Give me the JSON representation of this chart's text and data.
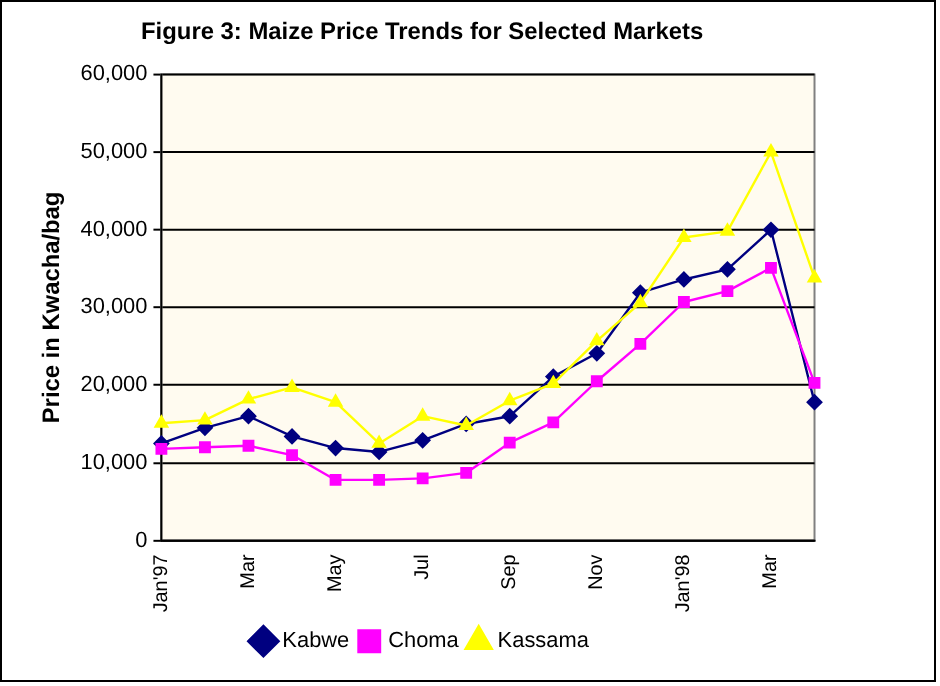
{
  "chart_data": {
    "type": "line",
    "title": "Figure 3: Maize Price Trends for Selected Markets",
    "ylabel": "Price in Kwacha/bag",
    "categories": [
      "Jan'97",
      null,
      "Mar",
      null,
      "May",
      null,
      "Jul",
      null,
      "Sep",
      null,
      "Nov",
      null,
      "Jan'98",
      null,
      "Mar",
      null
    ],
    "series": [
      {
        "name": "Kabwe",
        "color": "#000080",
        "marker": "diamond",
        "values": [
          12500,
          14500,
          16000,
          13400,
          11900,
          11400,
          12900,
          15000,
          16000,
          21100,
          24100,
          31900,
          33600,
          34900,
          40000,
          17800
        ]
      },
      {
        "name": "Choma",
        "color": "#ff00ff",
        "marker": "square",
        "values": [
          11800,
          12000,
          12200,
          11000,
          7800,
          7800,
          8000,
          8700,
          12600,
          15200,
          20500,
          25300,
          30700,
          32100,
          35100,
          20300
        ]
      },
      {
        "name": "Kassama",
        "color": "#ffff00",
        "marker": "triangle",
        "values": [
          15100,
          15500,
          18200,
          19700,
          17800,
          12500,
          16000,
          14800,
          18000,
          20200,
          25700,
          30600,
          39000,
          39800,
          50000,
          33800
        ]
      }
    ],
    "ylim": [
      0,
      60000
    ],
    "yticks": [
      0,
      {
        "value": 10000,
        "label": "10,000"
      },
      {
        "value": 20000,
        "label": "20,000"
      },
      {
        "value": 30000,
        "label": "30,000"
      },
      {
        "value": 40000,
        "label": "40,000"
      },
      {
        "value": 50000,
        "label": "50,000"
      },
      {
        "value": 60000,
        "label": "60,000"
      }
    ],
    "grid": "y",
    "legend": "bottom"
  }
}
